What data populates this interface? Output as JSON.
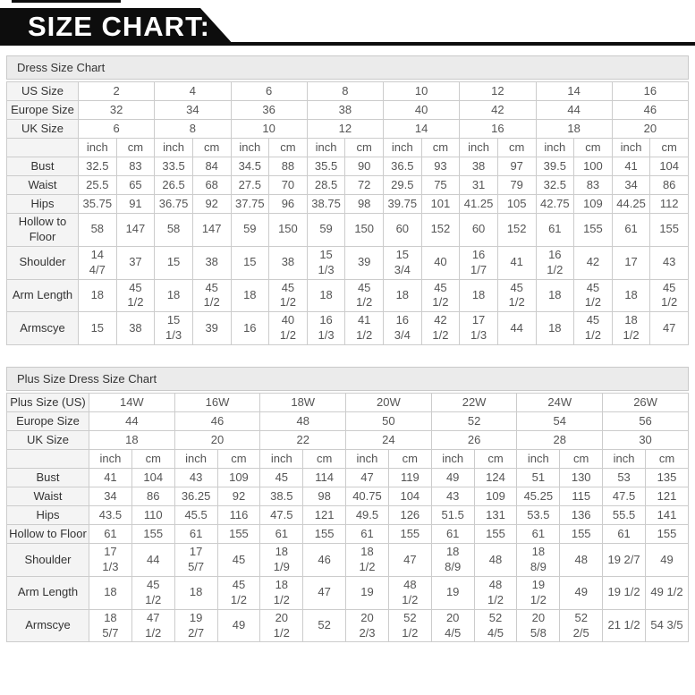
{
  "banner": {
    "title": "SIZE CHART:"
  },
  "dress_chart": {
    "title": "Dress Size Chart",
    "unit_labels": [
      "inch",
      "cm"
    ],
    "size_rows": [
      {
        "label": "US Size",
        "values": [
          "2",
          "4",
          "6",
          "8",
          "10",
          "12",
          "14",
          "16"
        ]
      },
      {
        "label": "Europe Size",
        "values": [
          "32",
          "34",
          "36",
          "38",
          "40",
          "42",
          "44",
          "46"
        ]
      },
      {
        "label": "UK Size",
        "values": [
          "6",
          "8",
          "10",
          "12",
          "14",
          "16",
          "18",
          "20"
        ]
      }
    ],
    "measure_rows": [
      {
        "label": "Bust",
        "values": [
          "32.5",
          "83",
          "33.5",
          "84",
          "34.5",
          "88",
          "35.5",
          "90",
          "36.5",
          "93",
          "38",
          "97",
          "39.5",
          "100",
          "41",
          "104"
        ]
      },
      {
        "label": "Waist",
        "values": [
          "25.5",
          "65",
          "26.5",
          "68",
          "27.5",
          "70",
          "28.5",
          "72",
          "29.5",
          "75",
          "31",
          "79",
          "32.5",
          "83",
          "34",
          "86"
        ]
      },
      {
        "label": "Hips",
        "values": [
          "35.75",
          "91",
          "36.75",
          "92",
          "37.75",
          "96",
          "38.75",
          "98",
          "39.75",
          "101",
          "41.25",
          "105",
          "42.75",
          "109",
          "44.25",
          "112"
        ]
      },
      {
        "label": "Hollow to Floor",
        "values": [
          "58",
          "147",
          "58",
          "147",
          "59",
          "150",
          "59",
          "150",
          "60",
          "152",
          "60",
          "152",
          "61",
          "155",
          "61",
          "155"
        ]
      },
      {
        "label": "Shoulder",
        "values": [
          "14\n4/7",
          "37",
          "15",
          "38",
          "15",
          "38",
          "15\n1/3",
          "39",
          "15\n3/4",
          "40",
          "16\n1/7",
          "41",
          "16\n1/2",
          "42",
          "17",
          "43"
        ]
      },
      {
        "label": "Arm Length",
        "values": [
          "18",
          "45\n1/2",
          "18",
          "45\n1/2",
          "18",
          "45\n1/2",
          "18",
          "45\n1/2",
          "18",
          "45\n1/2",
          "18",
          "45\n1/2",
          "18",
          "45\n1/2",
          "18",
          "45\n1/2"
        ]
      },
      {
        "label": "Armscye",
        "values": [
          "15",
          "38",
          "15\n1/3",
          "39",
          "16",
          "40\n1/2",
          "16\n1/3",
          "41\n1/2",
          "16\n3/4",
          "42\n1/2",
          "17\n1/3",
          "44",
          "18",
          "45\n1/2",
          "18\n1/2",
          "47"
        ]
      }
    ]
  },
  "plus_chart": {
    "title": "Plus Size Dress Size Chart",
    "unit_labels": [
      "inch",
      "cm"
    ],
    "size_rows": [
      {
        "label": "Plus Size (US)",
        "values": [
          "14W",
          "16W",
          "18W",
          "20W",
          "22W",
          "24W",
          "26W"
        ]
      },
      {
        "label": "Europe Size",
        "values": [
          "44",
          "46",
          "48",
          "50",
          "52",
          "54",
          "56"
        ]
      },
      {
        "label": "UK Size",
        "values": [
          "18",
          "20",
          "22",
          "24",
          "26",
          "28",
          "30"
        ]
      }
    ],
    "measure_rows": [
      {
        "label": "Bust",
        "values": [
          "41",
          "104",
          "43",
          "109",
          "45",
          "114",
          "47",
          "119",
          "49",
          "124",
          "51",
          "130",
          "53",
          "135"
        ]
      },
      {
        "label": "Waist",
        "values": [
          "34",
          "86",
          "36.25",
          "92",
          "38.5",
          "98",
          "40.75",
          "104",
          "43",
          "109",
          "45.25",
          "115",
          "47.5",
          "121"
        ]
      },
      {
        "label": "Hips",
        "values": [
          "43.5",
          "110",
          "45.5",
          "116",
          "47.5",
          "121",
          "49.5",
          "126",
          "51.5",
          "131",
          "53.5",
          "136",
          "55.5",
          "141"
        ]
      },
      {
        "label": "Hollow to Floor",
        "values": [
          "61",
          "155",
          "61",
          "155",
          "61",
          "155",
          "61",
          "155",
          "61",
          "155",
          "61",
          "155",
          "61",
          "155"
        ]
      },
      {
        "label": "Shoulder",
        "values": [
          "17\n1/3",
          "44",
          "17\n5/7",
          "45",
          "18\n1/9",
          "46",
          "18\n1/2",
          "47",
          "18\n8/9",
          "48",
          "18\n8/9",
          "48",
          "19 2/7",
          "49"
        ]
      },
      {
        "label": "Arm Length",
        "values": [
          "18",
          "45\n1/2",
          "18",
          "45\n1/2",
          "18\n1/2",
          "47",
          "19",
          "48\n1/2",
          "19",
          "48\n1/2",
          "19\n1/2",
          "49",
          "19 1/2",
          "49 1/2"
        ]
      },
      {
        "label": "Armscye",
        "values": [
          "18\n5/7",
          "47\n1/2",
          "19\n2/7",
          "49",
          "20\n1/2",
          "52",
          "20\n2/3",
          "52\n1/2",
          "20\n4/5",
          "52\n4/5",
          "20\n5/8",
          "52\n2/5",
          "21 1/2",
          "54 3/5"
        ]
      }
    ]
  }
}
